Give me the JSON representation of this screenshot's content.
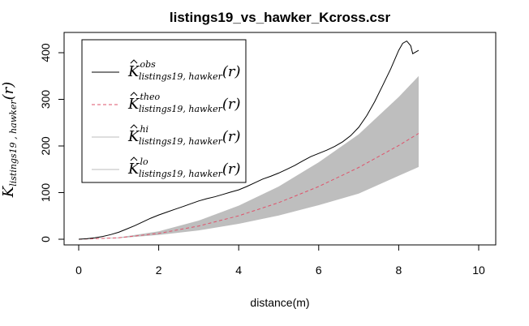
{
  "chart_data": {
    "type": "line",
    "title": "listings19_vs_hawker_Kcross.csr",
    "xlabel": "distance(m)",
    "ylabel": {
      "main": "K",
      "sub": "listings19 , hawker",
      "arg": "(r)"
    },
    "xlim": [
      0,
      10
    ],
    "ylim": [
      0,
      420
    ],
    "x_ticks": [
      "0",
      "2",
      "4",
      "6",
      "8",
      "10"
    ],
    "y_ticks": [
      "0",
      "100",
      "200",
      "300",
      "400"
    ],
    "grid": false,
    "legend_position": "top-left",
    "legend": [
      {
        "main": "K",
        "sup": "obs",
        "sub": "listings19, hawker",
        "arg": "(r)",
        "color": "#000000",
        "dash": "solid"
      },
      {
        "main": "K",
        "sup": "theo",
        "sub": "listings19, hawker",
        "arg": "(r)",
        "color": "#DF536B",
        "dash": "dashed"
      },
      {
        "main": "K",
        "sup": "hi",
        "sub": "listings19, hawker",
        "arg": "(r)",
        "color": "#BEBEBE",
        "dash": "solid"
      },
      {
        "main": "K",
        "sup": "lo",
        "sub": "listings19, hawker",
        "arg": "(r)",
        "color": "#BEBEBE",
        "dash": "solid"
      }
    ],
    "series": [
      {
        "name": "obs",
        "color": "#000000",
        "x": [
          0,
          0.2,
          0.4,
          0.6,
          0.8,
          1.0,
          1.2,
          1.4,
          1.6,
          1.8,
          2.0,
          2.2,
          2.4,
          2.6,
          2.8,
          3.0,
          3.2,
          3.4,
          3.6,
          3.8,
          4.0,
          4.2,
          4.4,
          4.6,
          4.8,
          5.0,
          5.2,
          5.4,
          5.6,
          5.8,
          6.0,
          6.2,
          6.4,
          6.6,
          6.8,
          7.0,
          7.2,
          7.4,
          7.6,
          7.8,
          8.0,
          8.1,
          8.2,
          8.3,
          8.35,
          8.5
        ],
        "y": [
          0,
          1,
          3,
          6,
          10,
          15,
          22,
          29,
          37,
          45,
          52,
          58,
          64,
          70,
          76,
          82,
          87,
          91,
          96,
          101,
          106,
          113,
          121,
          129,
          135,
          142,
          150,
          158,
          168,
          177,
          184,
          191,
          199,
          209,
          222,
          240,
          265,
          295,
          330,
          365,
          405,
          420,
          425,
          415,
          398,
          405
        ]
      },
      {
        "name": "theo",
        "color": "#DF536B",
        "x": [
          0,
          1,
          2,
          3,
          4,
          5,
          6,
          7,
          8,
          8.5
        ],
        "y": [
          0,
          3.1,
          12.6,
          28.3,
          50.3,
          78.5,
          113.1,
          153.9,
          201.1,
          227.0
        ]
      },
      {
        "name": "hi",
        "color": "#BEBEBE",
        "x": [
          0,
          1,
          2,
          3,
          4,
          5,
          6,
          7,
          8,
          8.5
        ],
        "y": [
          0,
          4,
          17,
          40,
          72,
          113,
          165,
          225,
          305,
          350
        ]
      },
      {
        "name": "lo",
        "color": "#BEBEBE",
        "x": [
          0,
          1,
          2,
          3,
          4,
          5,
          6,
          7,
          8,
          8.5
        ],
        "y": [
          0,
          2.5,
          9,
          19,
          33,
          51,
          73,
          98,
          136,
          155
        ]
      }
    ]
  }
}
